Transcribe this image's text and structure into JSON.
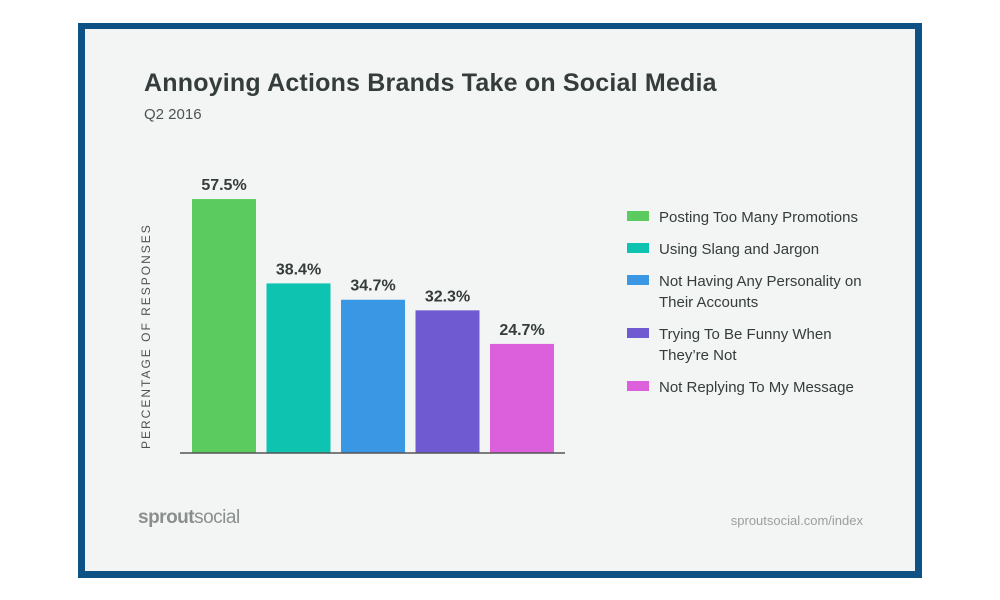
{
  "chart_data": {
    "type": "bar",
    "title": "Annoying Actions Brands Take on Social Media",
    "subtitle": "Q2 2016",
    "ylabel": "PERCENTAGE OF RESPONSES",
    "xlabel": "",
    "ylim": [
      0,
      60
    ],
    "grid": false,
    "legend_placement": "right",
    "categories": [
      "Posting Too Many Promotions",
      "Using Slang and Jargon",
      "Not Having Any Personality on Their Accounts",
      "Trying To Be Funny When They’re Not",
      "Not Replying To My Message"
    ],
    "values": [
      57.5,
      38.4,
      34.7,
      32.3,
      24.7
    ],
    "data_labels": [
      "57.5%",
      "38.4%",
      "34.7%",
      "32.3%",
      "24.7%"
    ],
    "colors": [
      "#5ccb5f",
      "#0ec4b0",
      "#3a97e4",
      "#6f5ad1",
      "#dc5fdc"
    ]
  },
  "footer": {
    "logo_bold": "sprout",
    "logo_light": "social",
    "url": "sproutsocial.com/index"
  },
  "theme": {
    "frame": "#0d5185",
    "background": "#f3f4f4"
  }
}
